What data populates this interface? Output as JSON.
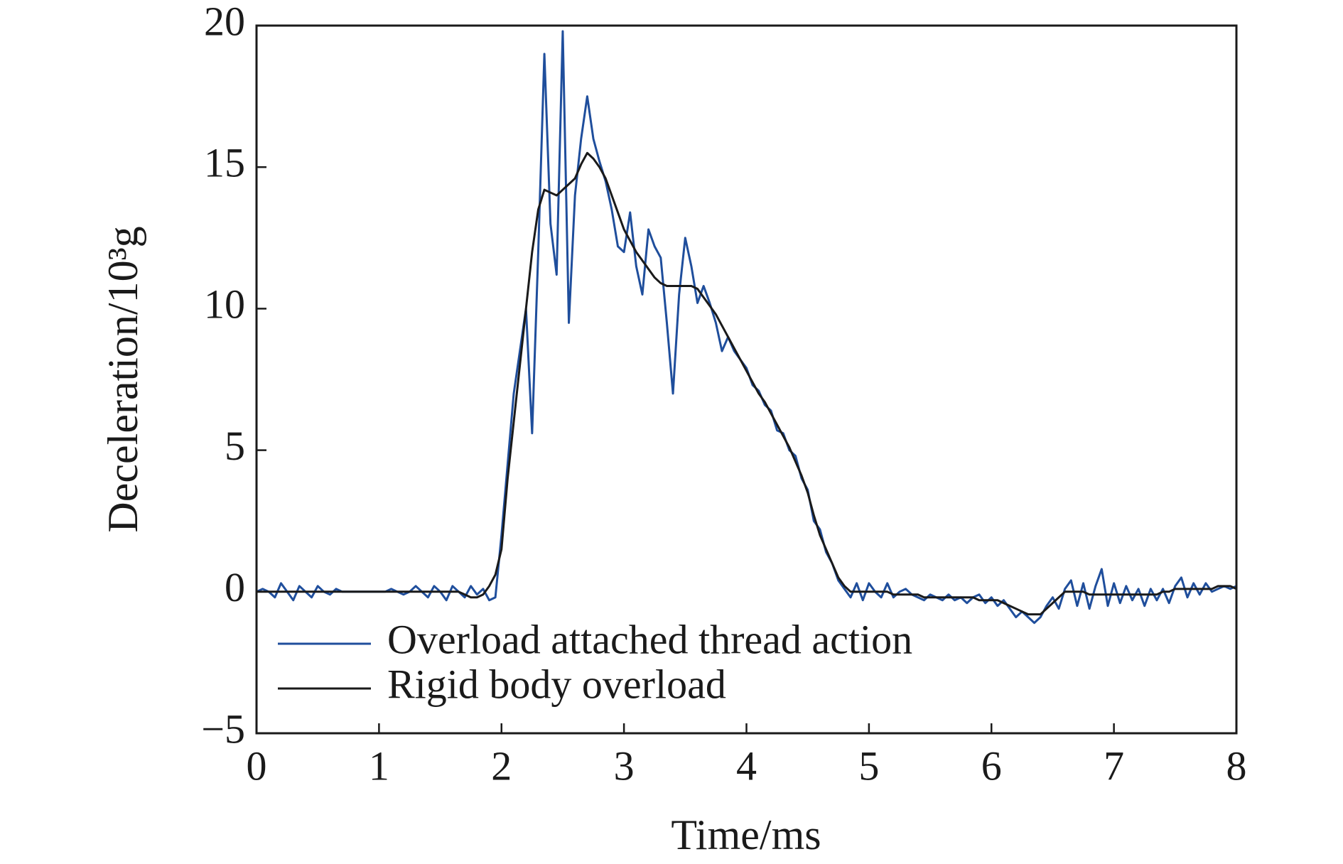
{
  "chart_data": {
    "type": "line",
    "xlabel": "Time/ms",
    "ylabel": "Deceleration/10³g",
    "xlim": [
      0,
      8
    ],
    "ylim": [
      -5,
      20
    ],
    "xticks": [
      0,
      1,
      2,
      3,
      4,
      5,
      6,
      7,
      8
    ],
    "yticks": [
      {
        "value": -5,
        "label": "−5"
      },
      0,
      5,
      10,
      15,
      20
    ],
    "legend": "lower left",
    "x": [
      0,
      0.05,
      0.1,
      0.15,
      0.2,
      0.25,
      0.3,
      0.35,
      0.4,
      0.45,
      0.5,
      0.55,
      0.6,
      0.65,
      0.7,
      0.75,
      0.8,
      0.85,
      0.9,
      0.95,
      1,
      1.05,
      1.1,
      1.15,
      1.2,
      1.25,
      1.3,
      1.35,
      1.4,
      1.45,
      1.5,
      1.55,
      1.6,
      1.65,
      1.7,
      1.75,
      1.8,
      1.85,
      1.9,
      1.95,
      2,
      2.05,
      2.1,
      2.15,
      2.2,
      2.25,
      2.3,
      2.35,
      2.4,
      2.45,
      2.5,
      2.55,
      2.6,
      2.65,
      2.7,
      2.75,
      2.8,
      2.85,
      2.9,
      2.95,
      3,
      3.05,
      3.1,
      3.15,
      3.2,
      3.25,
      3.3,
      3.35,
      3.4,
      3.45,
      3.5,
      3.55,
      3.6,
      3.65,
      3.7,
      3.75,
      3.8,
      3.85,
      3.9,
      3.95,
      4,
      4.05,
      4.1,
      4.15,
      4.2,
      4.25,
      4.3,
      4.35,
      4.4,
      4.45,
      4.5,
      4.55,
      4.6,
      4.65,
      4.7,
      4.75,
      4.8,
      4.85,
      4.9,
      4.95,
      5,
      5.05,
      5.1,
      5.15,
      5.2,
      5.25,
      5.3,
      5.35,
      5.4,
      5.45,
      5.5,
      5.55,
      5.6,
      5.65,
      5.7,
      5.75,
      5.8,
      5.85,
      5.9,
      5.95,
      6,
      6.05,
      6.1,
      6.15,
      6.2,
      6.25,
      6.3,
      6.35,
      6.4,
      6.45,
      6.5,
      6.55,
      6.6,
      6.65,
      6.7,
      6.75,
      6.8,
      6.85,
      6.9,
      6.95,
      7,
      7.05,
      7.1,
      7.15,
      7.2,
      7.25,
      7.3,
      7.35,
      7.4,
      7.45,
      7.5,
      7.55,
      7.6,
      7.65,
      7.7,
      7.75,
      7.8,
      7.85,
      7.9,
      7.95,
      8
    ],
    "series": [
      {
        "name": "Overload attached thread action",
        "color": "#1f4e9c",
        "values": [
          0,
          0.1,
          0,
          -0.2,
          0.3,
          0,
          -0.3,
          0.2,
          0,
          -0.2,
          0.2,
          0,
          -0.1,
          0.1,
          0,
          0,
          0,
          0,
          0,
          0,
          0,
          0,
          0.1,
          0,
          -0.1,
          0,
          0.2,
          0,
          -0.2,
          0.2,
          0,
          -0.3,
          0.2,
          0,
          -0.2,
          0.2,
          -0.1,
          0.1,
          -0.3,
          -0.2,
          2.0,
          4.5,
          7,
          8.5,
          10,
          5.6,
          12,
          19,
          13,
          11.2,
          19.8,
          9.5,
          14,
          16,
          17.5,
          16,
          15.2,
          14.5,
          13.5,
          12.2,
          12.0,
          13.4,
          11.5,
          10.5,
          12.8,
          12.2,
          11.8,
          9.5,
          7.0,
          10.5,
          12.5,
          11.5,
          10.2,
          10.8,
          10.2,
          9.5,
          8.5,
          9.0,
          8.5,
          8.2,
          7.9,
          7.3,
          7.1,
          6.6,
          6.4,
          5.7,
          5.6,
          5.0,
          4.8,
          4.0,
          3.6,
          2.5,
          2.2,
          1.4,
          1.0,
          0.4,
          0.1,
          -0.2,
          0.3,
          -0.3,
          0.3,
          0,
          -0.2,
          0.3,
          -0.2,
          0,
          0.1,
          -0.1,
          -0.2,
          -0.3,
          -0.1,
          -0.2,
          -0.3,
          -0.1,
          -0.3,
          -0.2,
          -0.4,
          -0.2,
          -0.1,
          -0.4,
          -0.2,
          -0.5,
          -0.3,
          -0.6,
          -0.9,
          -0.7,
          -0.9,
          -1.1,
          -0.9,
          -0.5,
          -0.2,
          -0.6,
          0.1,
          0.4,
          -0.5,
          0.3,
          -0.6,
          0.2,
          0.8,
          -0.5,
          0.3,
          -0.4,
          0.2,
          -0.3,
          0.1,
          -0.5,
          0.1,
          -0.3,
          0.1,
          -0.4,
          0.2,
          0.5,
          -0.2,
          0.3,
          -0.1,
          0.3,
          0,
          0.1,
          0.2,
          0.1,
          0.2
        ]
      },
      {
        "name": "Rigid body overload",
        "color": "#1a1a1a",
        "values": [
          0,
          0,
          0,
          0,
          0,
          0,
          0,
          0,
          0,
          0,
          0,
          0,
          0,
          0,
          0,
          0,
          0,
          0,
          0,
          0,
          0,
          0,
          0,
          0,
          0,
          0,
          0,
          0,
          0,
          0,
          0,
          0,
          0,
          0,
          -0.1,
          -0.2,
          -0.2,
          -0.1,
          0.2,
          0.6,
          1.5,
          4,
          6,
          8,
          10,
          12,
          13.5,
          14.2,
          14.1,
          14.0,
          14.2,
          14.4,
          14.6,
          15.1,
          15.5,
          15.3,
          15.0,
          14.6,
          14.0,
          13.4,
          12.8,
          12.4,
          12.0,
          11.7,
          11.4,
          11.1,
          10.9,
          10.8,
          10.8,
          10.8,
          10.8,
          10.8,
          10.7,
          10.4,
          10.1,
          9.8,
          9.4,
          9.0,
          8.6,
          8.2,
          7.8,
          7.4,
          7.0,
          6.7,
          6.3,
          5.9,
          5.5,
          5.1,
          4.6,
          4.1,
          3.5,
          2.7,
          2.0,
          1.5,
          1.0,
          0.5,
          0.2,
          0.0,
          0,
          0,
          0,
          0,
          0,
          0,
          -0.1,
          -0.1,
          -0.1,
          -0.1,
          -0.1,
          -0.2,
          -0.2,
          -0.2,
          -0.2,
          -0.2,
          -0.2,
          -0.2,
          -0.2,
          -0.2,
          -0.3,
          -0.3,
          -0.3,
          -0.3,
          -0.4,
          -0.5,
          -0.6,
          -0.7,
          -0.8,
          -0.8,
          -0.8,
          -0.6,
          -0.4,
          -0.2,
          0,
          0,
          0,
          0,
          -0.1,
          -0.1,
          -0.1,
          -0.1,
          -0.1,
          -0.1,
          -0.1,
          -0.1,
          -0.1,
          -0.1,
          -0.1,
          -0.1,
          0,
          0,
          0.1,
          0.1,
          0.1,
          0.1,
          0.1,
          0.1,
          0.1,
          0.2,
          0.2,
          0.2,
          0.1
        ]
      }
    ]
  }
}
